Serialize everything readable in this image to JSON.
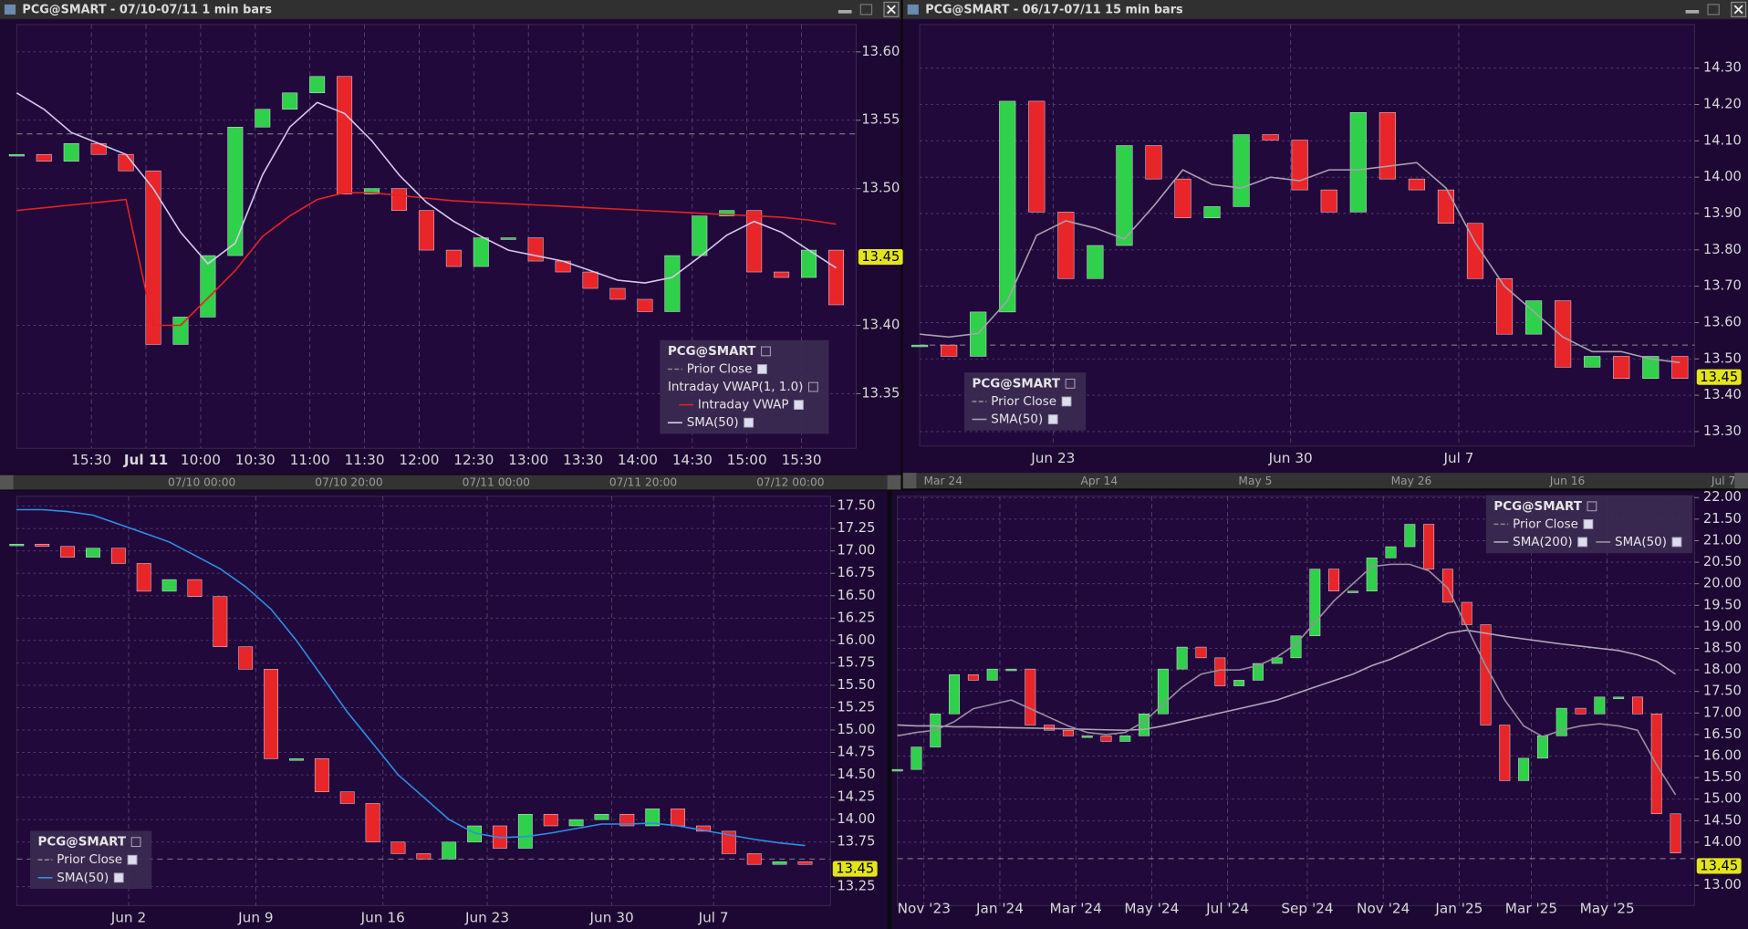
{
  "chart_data": [
    {
      "type": "candlestick",
      "window_title": "PCG@SMART - 07/10-07/11 1 min bars",
      "symbol": "PCG@SMART",
      "x": [
        0,
        15,
        30,
        45,
        60,
        75,
        90,
        105,
        120,
        135,
        150,
        165,
        180,
        195,
        210,
        225,
        240,
        255,
        270,
        285,
        300,
        315,
        330,
        345,
        360,
        375,
        390,
        405,
        420,
        435,
        450
      ],
      "price": {
        "up_color": "#2fd04a",
        "down_color": "#e8262a",
        "values": [
          13.525,
          13.52,
          13.533,
          13.525,
          13.513,
          13.386,
          13.406,
          13.451,
          13.545,
          13.558,
          13.57,
          13.582,
          13.496,
          13.5,
          13.484,
          13.455,
          13.443,
          13.464,
          13.464,
          13.447,
          13.439,
          13.427,
          13.419,
          13.41,
          13.451,
          13.48,
          13.484,
          13.439,
          13.435,
          13.455,
          13.415
        ]
      },
      "series": [
        {
          "name": "Intraday VWAP",
          "group": "Intraday VWAP(1, 1.0)",
          "color": "#e82020",
          "values": [
            13.484,
            13.486,
            13.488,
            13.49,
            13.492,
            13.4,
            13.4,
            13.42,
            13.44,
            13.465,
            13.48,
            13.492,
            13.497,
            13.497,
            13.495,
            13.493,
            13.491,
            13.49,
            13.489,
            13.488,
            13.487,
            13.486,
            13.485,
            13.484,
            13.483,
            13.482,
            13.481,
            13.48,
            13.479,
            13.477,
            13.474
          ]
        },
        {
          "name": "SMA(50)",
          "color": "#d8c8f0",
          "values": [
            13.57,
            13.558,
            13.541,
            13.533,
            13.525,
            13.5,
            13.468,
            13.445,
            13.46,
            13.51,
            13.545,
            13.563,
            13.555,
            13.535,
            13.51,
            13.49,
            13.476,
            13.465,
            13.455,
            13.451,
            13.447,
            13.44,
            13.433,
            13.431,
            13.435,
            13.45,
            13.466,
            13.476,
            13.468,
            13.455,
            13.442
          ]
        }
      ],
      "prior_close": {
        "name": "Prior Close",
        "value": 13.54,
        "color": "#8a8a8a"
      },
      "last_price": {
        "value": 13.45,
        "label": "13.45"
      },
      "xlim": [
        0,
        461
      ],
      "xticks": [
        {
          "value": 41,
          "label": "15:30"
        },
        {
          "value": 71,
          "label": "Jul 11"
        },
        {
          "value": 101,
          "label": "10:00"
        },
        {
          "value": 131,
          "label": "10:30"
        },
        {
          "value": 161,
          "label": "11:00"
        },
        {
          "value": 191,
          "label": "11:30"
        },
        {
          "value": 221,
          "label": "12:00"
        },
        {
          "value": 251,
          "label": "12:30"
        },
        {
          "value": 281,
          "label": "13:00"
        },
        {
          "value": 311,
          "label": "13:30"
        },
        {
          "value": 341,
          "label": "14:00"
        },
        {
          "value": 371,
          "label": "14:30"
        },
        {
          "value": 401,
          "label": "15:00"
        },
        {
          "value": 431,
          "label": "15:30"
        }
      ],
      "ylim": [
        13.31,
        13.62
      ],
      "yticks": [
        {
          "value": 13.6,
          "label": "13.60"
        },
        13.55,
        {
          "value": 13.5,
          "label": "13.50"
        },
        {
          "value": 13.4,
          "label": "13.40"
        },
        13.35
      ],
      "grid": true,
      "scroll_labels": [
        "07/10 00:00",
        "07/10 20:00",
        "07/11 00:00",
        "07/11 20:00",
        "07/12 00:00"
      ]
    },
    {
      "type": "candlestick",
      "window_title": "PCG@SMART - 06/17-07/11 15 min bars",
      "symbol": "PCG@SMART",
      "x": [
        0,
        16,
        32,
        48,
        64,
        80,
        96,
        112,
        128,
        144,
        160,
        176,
        192,
        208,
        224,
        240,
        256,
        272,
        288,
        304,
        320,
        336,
        352,
        368,
        384,
        400,
        416
      ],
      "price": {
        "up_color": "#2fd04a",
        "down_color": "#e8262a",
        "values": [
          13.538,
          13.507,
          13.629,
          14.209,
          13.904,
          13.721,
          13.812,
          14.087,
          13.995,
          13.888,
          13.919,
          14.117,
          14.102,
          13.965,
          13.904,
          14.178,
          13.995,
          13.965,
          13.873,
          13.721,
          13.568,
          13.66,
          13.477,
          13.507,
          13.446,
          13.507,
          13.446
        ]
      },
      "series": [
        {
          "name": "SMA(50)",
          "color": "#a8a0b0",
          "values": [
            13.568,
            13.56,
            13.57,
            13.66,
            13.84,
            13.88,
            13.86,
            13.83,
            13.92,
            14.02,
            13.98,
            13.97,
            14.0,
            13.99,
            14.02,
            14.02,
            14.03,
            14.04,
            13.97,
            13.82,
            13.7,
            13.63,
            13.56,
            13.52,
            13.52,
            13.5,
            13.49
          ]
        }
      ],
      "prior_close": {
        "name": "Prior Close",
        "value": 13.538,
        "color": "#8a8a8a"
      },
      "last_price": {
        "value": 13.45,
        "label": "13.45"
      },
      "xlim": [
        0,
        424
      ],
      "xticks": [
        {
          "value": 73,
          "label": "Jun 23"
        },
        {
          "value": 203,
          "label": "Jun 30"
        },
        {
          "value": 295,
          "label": "Jul 7"
        }
      ],
      "ylim": [
        13.26,
        14.42
      ],
      "yticks": [
        {
          "value": 14.3,
          "label": "14.30"
        },
        {
          "value": 14.2,
          "label": "14.20"
        },
        {
          "value": 14.1,
          "label": "14.10"
        },
        {
          "value": 14,
          "label": "14.00"
        },
        {
          "value": 13.9,
          "label": "13.90"
        },
        {
          "value": 13.8,
          "label": "13.80"
        },
        {
          "value": 13.7,
          "label": "13.70"
        },
        {
          "value": 13.6,
          "label": "13.60"
        },
        {
          "value": 13.5,
          "label": "13.50"
        },
        {
          "value": 13.4,
          "label": "13.40"
        },
        {
          "value": 13.3,
          "label": "13.30"
        }
      ],
      "grid": true,
      "scroll_labels": [
        "Mar 24",
        "Apr 14",
        "May 5",
        "May 26",
        "Jun 16",
        "Jul 7"
      ]
    },
    {
      "type": "candlestick",
      "symbol": "PCG@SMART",
      "x": [
        0,
        1,
        2,
        3,
        4,
        5,
        6,
        7,
        8,
        9,
        10,
        11,
        12,
        13,
        14,
        15,
        16,
        17,
        18,
        19,
        20,
        21,
        22,
        23,
        24,
        25,
        26,
        27,
        28,
        29,
        30,
        31
      ],
      "price": {
        "up_color": "#2fd04a",
        "down_color": "#e8262a",
        "values": [
          17.076,
          17.05,
          16.93,
          17.03,
          16.86,
          16.55,
          16.68,
          16.49,
          15.93,
          15.68,
          14.68,
          14.68,
          14.31,
          14.18,
          13.75,
          13.62,
          13.56,
          13.75,
          13.93,
          13.68,
          14.06,
          13.93,
          14.0,
          14.06,
          13.93,
          14.12,
          13.93,
          13.87,
          13.62,
          13.5,
          13.53,
          13.5
        ]
      },
      "series": [
        {
          "name": "SMA(50)",
          "color": "#2f8ee8",
          "values": [
            17.46,
            17.46,
            17.44,
            17.4,
            17.3,
            17.2,
            17.1,
            16.95,
            16.8,
            16.6,
            16.35,
            16.0,
            15.6,
            15.2,
            14.85,
            14.5,
            14.25,
            14.0,
            13.85,
            13.8,
            13.81,
            13.85,
            13.9,
            13.95,
            13.95,
            13.96,
            13.93,
            13.88,
            13.83,
            13.78,
            13.74,
            13.71
          ]
        }
      ],
      "prior_close": {
        "name": "Prior Close",
        "value": 13.56,
        "color": "#8a8a8a"
      },
      "last_price": {
        "value": 13.45,
        "label": "13.45"
      },
      "xlim": [
        0,
        32
      ],
      "xticks": [
        {
          "value": 4.4,
          "label": "Jun 2"
        },
        {
          "value": 9.4,
          "label": "Jun 9"
        },
        {
          "value": 14.4,
          "label": "Jun 16"
        },
        {
          "value": 18.5,
          "label": "Jun 23"
        },
        {
          "value": 23.4,
          "label": "Jun 30"
        },
        {
          "value": 27.4,
          "label": "Jul 7"
        }
      ],
      "ylim": [
        13.04,
        17.61
      ],
      "yticks": [
        {
          "value": 17.5,
          "label": "17.50"
        },
        17.25,
        {
          "value": 17,
          "label": "17.00"
        },
        16.75,
        {
          "value": 16.5,
          "label": "16.50"
        },
        16.25,
        {
          "value": 16,
          "label": "16.00"
        },
        15.75,
        {
          "value": 15.5,
          "label": "15.50"
        },
        15.25,
        {
          "value": 15,
          "label": "15.00"
        },
        14.75,
        {
          "value": 14.5,
          "label": "14.50"
        },
        14.25,
        {
          "value": 14,
          "label": "14.00"
        },
        13.75,
        13.25
      ],
      "grid": true
    },
    {
      "type": "candlestick",
      "symbol": "PCG@SMART",
      "x": [
        0,
        0.5,
        1,
        1.5,
        2,
        2.5,
        3,
        3.5,
        4,
        4.5,
        5,
        5.5,
        6,
        6.5,
        7,
        7.5,
        8,
        8.5,
        9,
        9.5,
        10,
        10.5,
        11,
        11.5,
        12,
        12.5,
        13,
        13.5,
        14,
        14.5,
        15,
        15.5,
        16,
        16.5,
        17,
        17.5,
        18,
        18.5,
        19,
        19.5,
        20,
        20.5
      ],
      "price": {
        "up_color": "#2fd04a",
        "down_color": "#e8262a",
        "values": [
          15.69,
          16.21,
          16.98,
          17.89,
          17.76,
          18.02,
          18.02,
          16.72,
          16.6,
          16.47,
          16.47,
          16.34,
          16.47,
          16.98,
          18.02,
          18.53,
          18.28,
          17.63,
          17.76,
          18.15,
          18.28,
          18.79,
          20.34,
          19.83,
          19.83,
          20.6,
          20.86,
          21.38,
          20.34,
          19.57,
          19.05,
          16.72,
          15.43,
          15.95,
          16.47,
          17.11,
          16.98,
          17.37,
          17.37,
          16.98,
          14.66,
          13.75
        ]
      },
      "series": [
        {
          "name": "SMA(200)",
          "color": "#b0a8b8",
          "values": [
            16.72,
            16.7,
            16.7,
            16.68,
            16.68,
            16.67,
            16.66,
            16.65,
            16.64,
            16.63,
            16.62,
            16.61,
            16.6,
            16.62,
            16.7,
            16.8,
            16.9,
            17.0,
            17.1,
            17.2,
            17.3,
            17.45,
            17.6,
            17.75,
            17.9,
            18.1,
            18.25,
            18.45,
            18.65,
            18.85,
            18.92,
            18.85,
            18.78,
            18.72,
            18.66,
            18.6,
            18.55,
            18.5,
            18.45,
            18.35,
            18.2,
            17.9
          ]
        },
        {
          "name": "SMA(50)",
          "color": "#9890a0",
          "values": [
            16.47,
            16.55,
            16.6,
            16.8,
            17.1,
            17.2,
            17.3,
            17.1,
            16.9,
            16.7,
            16.55,
            16.5,
            16.55,
            16.8,
            17.2,
            17.6,
            17.9,
            18.0,
            18.0,
            18.1,
            18.3,
            18.6,
            19.1,
            19.6,
            20.0,
            20.4,
            20.45,
            20.45,
            20.3,
            19.9,
            19.0,
            18.1,
            17.3,
            16.7,
            16.45,
            16.6,
            16.7,
            16.75,
            16.7,
            16.6,
            15.8,
            15.1
          ]
        }
      ],
      "prior_close": {
        "name": "Prior Close",
        "value": 13.62,
        "color": "#8a8a8a"
      },
      "last_price": {
        "value": 13.45,
        "label": "13.45"
      },
      "xlim": [
        0,
        21
      ],
      "xticks": [
        {
          "value": 0.7,
          "label": "Nov '23"
        },
        {
          "value": 2.7,
          "label": "Jan '24"
        },
        {
          "value": 4.7,
          "label": "Mar '24"
        },
        {
          "value": 6.7,
          "label": "May '24"
        },
        {
          "value": 8.7,
          "label": "Jul '24"
        },
        {
          "value": 10.8,
          "label": "Sep '24"
        },
        {
          "value": 12.8,
          "label": "Nov '24"
        },
        {
          "value": 14.8,
          "label": "Jan '25"
        },
        {
          "value": 16.7,
          "label": "Mar '25"
        },
        {
          "value": 18.7,
          "label": "May '25"
        }
      ],
      "ylim": [
        12.53,
        22.03
      ],
      "yticks": [
        {
          "value": 22,
          "label": "22.00"
        },
        {
          "value": 21.5,
          "label": "21.50"
        },
        {
          "value": 21,
          "label": "21.00"
        },
        {
          "value": 20.5,
          "label": "20.50"
        },
        {
          "value": 20,
          "label": "20.00"
        },
        {
          "value": 19.5,
          "label": "19.50"
        },
        {
          "value": 19,
          "label": "19.00"
        },
        {
          "value": 18.5,
          "label": "18.50"
        },
        {
          "value": 18,
          "label": "18.00"
        },
        {
          "value": 17.5,
          "label": "17.50"
        },
        {
          "value": 17,
          "label": "17.00"
        },
        {
          "value": 16.5,
          "label": "16.50"
        },
        {
          "value": 16,
          "label": "16.00"
        },
        {
          "value": 15.5,
          "label": "15.50"
        },
        {
          "value": 15,
          "label": "15.00"
        },
        {
          "value": 14.5,
          "label": "14.50"
        },
        {
          "value": 14,
          "label": "14.00"
        },
        {
          "value": 13,
          "label": "13.00"
        }
      ],
      "grid": true
    }
  ]
}
